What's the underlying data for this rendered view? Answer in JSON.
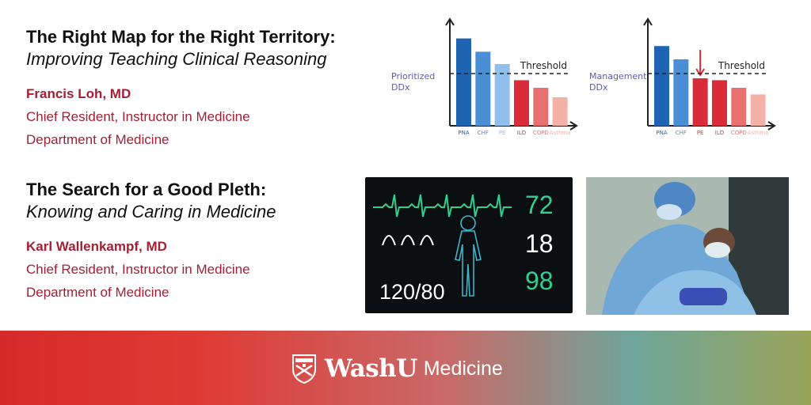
{
  "talks": [
    {
      "title": "The Right Map for the Right Territory:",
      "subtitle": "Improving Teaching Clinical Reasoning",
      "speaker": "Francis Loh, MD",
      "role": "Chief Resident, Instructor in Medicine",
      "department": "Department of Medicine"
    },
    {
      "title": "The Search for a Good Pleth:",
      "subtitle": "Knowing and Caring in Medicine",
      "speaker": "Karl Wallenkampf, MD",
      "role": "Chief Resident, Instructor in Medicine",
      "department": "Department of Medicine"
    }
  ],
  "chart_data": [
    {
      "type": "bar",
      "ylabel": "Prioritized DDx",
      "threshold_label": "Threshold",
      "threshold": 0.55,
      "ylim": [
        0,
        1
      ],
      "categories": [
        "PNA",
        "CHF",
        "PE",
        "ILD",
        "COPD",
        "Asthma"
      ],
      "values": [
        0.92,
        0.78,
        0.65,
        0.48,
        0.4,
        0.3
      ],
      "colors": [
        "#1f64b3",
        "#4a8fd6",
        "#8fbfea",
        "#d92b3a",
        "#ea6f6f",
        "#f3b1a8"
      ]
    },
    {
      "type": "bar",
      "ylabel": "Management DDx",
      "threshold_label": "Threshold",
      "threshold": 0.55,
      "ylim": [
        0,
        1
      ],
      "categories": [
        "PNA",
        "CHF",
        "PE",
        "ILD",
        "COPD",
        "Asthma"
      ],
      "values": [
        0.84,
        0.7,
        0.5,
        0.48,
        0.4,
        0.33
      ],
      "colors": [
        "#1f64b3",
        "#4a8fd6",
        "#d92b3a",
        "#d92b3a",
        "#ea6f6f",
        "#f3b1a8"
      ],
      "arrow_on": "PE"
    }
  ],
  "monitor": {
    "heart_rate": "72",
    "resp_rate": "18",
    "spo2": "98",
    "blood_pressure": "120/80",
    "hr_color": "#2fd08f",
    "rr_color": "#ffffff",
    "spo2_color": "#2fd08f",
    "bp_color": "#ffffff"
  },
  "footer": {
    "brand_bold": "WashU",
    "brand_light": "Medicine",
    "gradient_colors": [
      "#d62a2a",
      "#c86a68",
      "#6ea59a",
      "#9aa55a"
    ]
  }
}
